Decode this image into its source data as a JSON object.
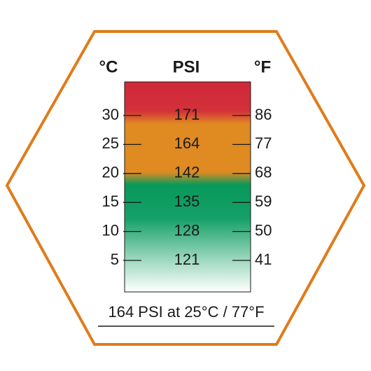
{
  "header": {
    "celsius": "°C",
    "psi": "PSI",
    "fahrenheit": "°F"
  },
  "rows": [
    {
      "celsius": "30",
      "psi": "171",
      "fahrenheit": "86"
    },
    {
      "celsius": "25",
      "psi": "164",
      "fahrenheit": "77"
    },
    {
      "celsius": "20",
      "psi": "142",
      "fahrenheit": "68"
    },
    {
      "celsius": "15",
      "psi": "135",
      "fahrenheit": "59"
    },
    {
      "celsius": "10",
      "psi": "128",
      "fahrenheit": "50"
    },
    {
      "celsius": "5",
      "psi": "121",
      "fahrenheit": "41"
    }
  ],
  "caption": "164 PSI at 25°C / 77°F"
}
